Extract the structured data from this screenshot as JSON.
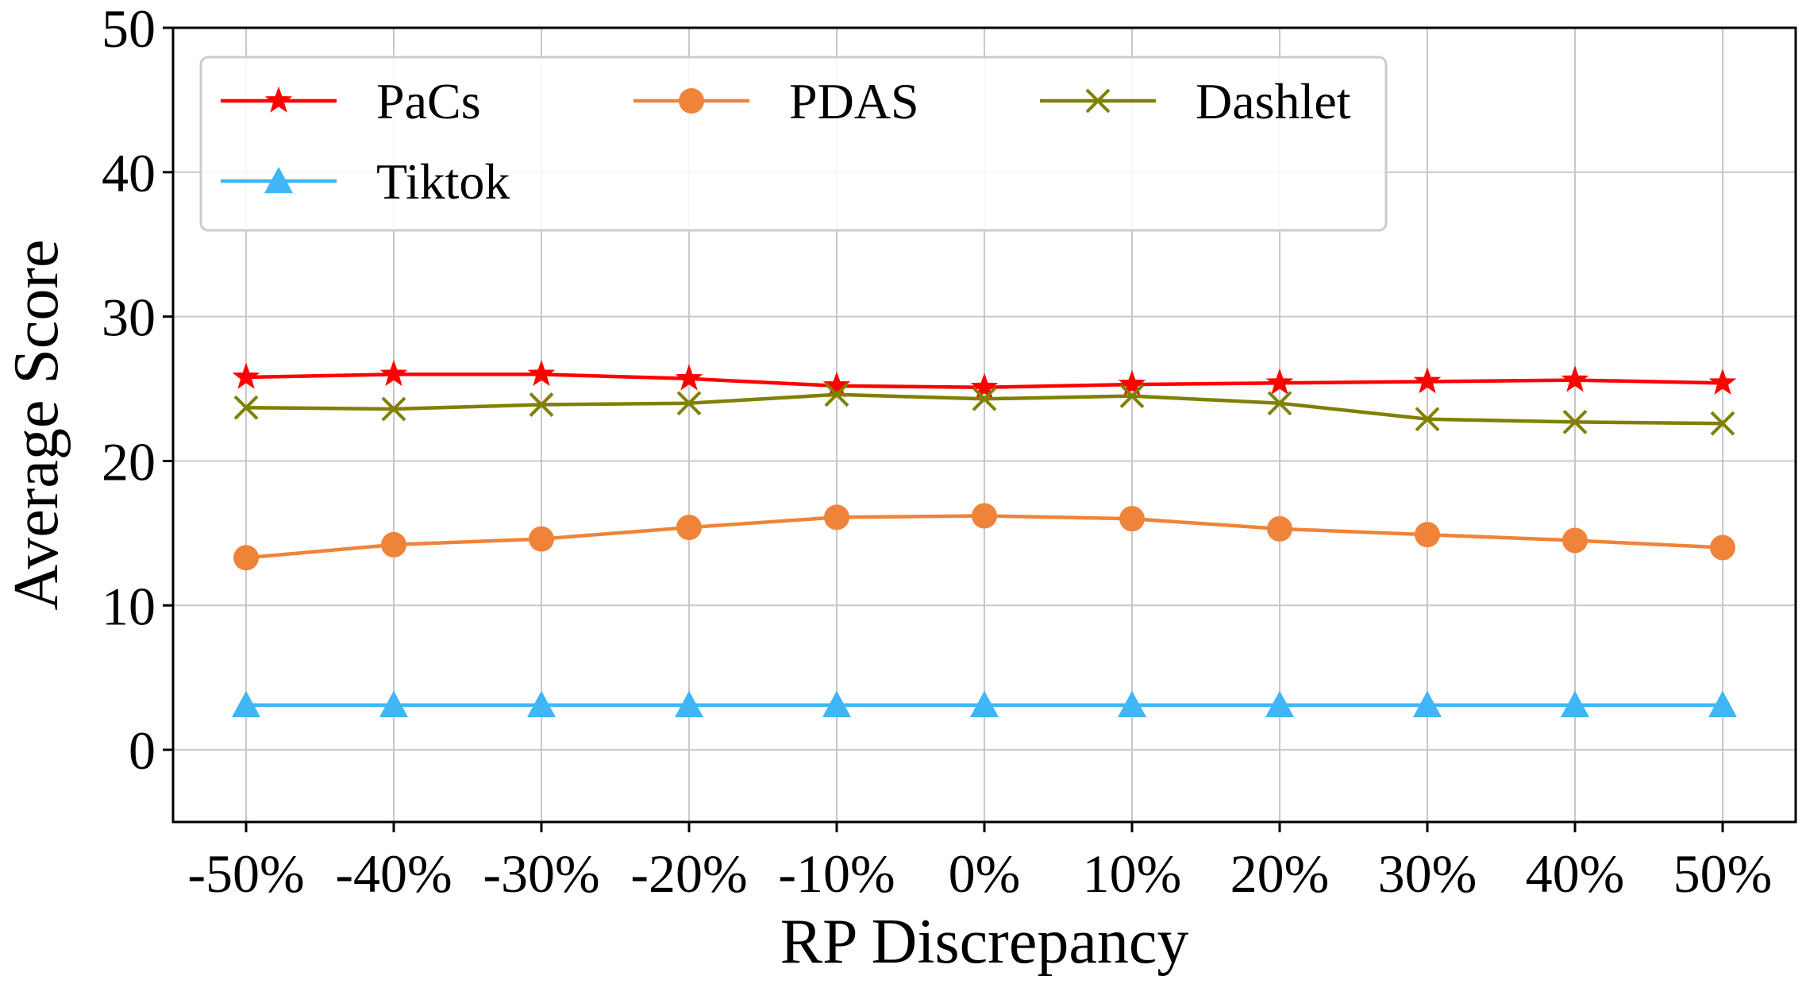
{
  "chart_data": {
    "type": "line",
    "title": "",
    "xlabel": "RP Discrepancy",
    "ylabel": "Average Score",
    "categories": [
      "-50%",
      "-40%",
      "-30%",
      "-20%",
      "-10%",
      "0%",
      "10%",
      "20%",
      "30%",
      "40%",
      "50%"
    ],
    "ylim": [
      -5,
      50
    ],
    "yticks": [
      0,
      10,
      20,
      30,
      40,
      50
    ],
    "ytick_labels": [
      "0",
      "10",
      "20",
      "30",
      "40",
      "50"
    ],
    "grid": true,
    "legend_position": "top-left",
    "series": [
      {
        "name": "PaCs",
        "color": "#ff0000",
        "marker": "star",
        "values": [
          25.8,
          26.0,
          26.0,
          25.7,
          25.2,
          25.1,
          25.3,
          25.4,
          25.5,
          25.6,
          25.4
        ]
      },
      {
        "name": "PDAS",
        "color": "#f0833a",
        "marker": "circle",
        "values": [
          13.3,
          14.2,
          14.6,
          15.4,
          16.1,
          16.2,
          16.0,
          15.3,
          14.9,
          14.5,
          14.0
        ]
      },
      {
        "name": "Dashlet",
        "color": "#808000",
        "marker": "x",
        "values": [
          23.7,
          23.6,
          23.9,
          24.0,
          24.6,
          24.3,
          24.5,
          24.0,
          22.9,
          22.7,
          22.6
        ]
      },
      {
        "name": "Tiktok",
        "color": "#3fb6f5",
        "marker": "triangle",
        "values": [
          3.1,
          3.1,
          3.1,
          3.1,
          3.1,
          3.1,
          3.1,
          3.1,
          3.1,
          3.1,
          3.1
        ]
      }
    ]
  }
}
